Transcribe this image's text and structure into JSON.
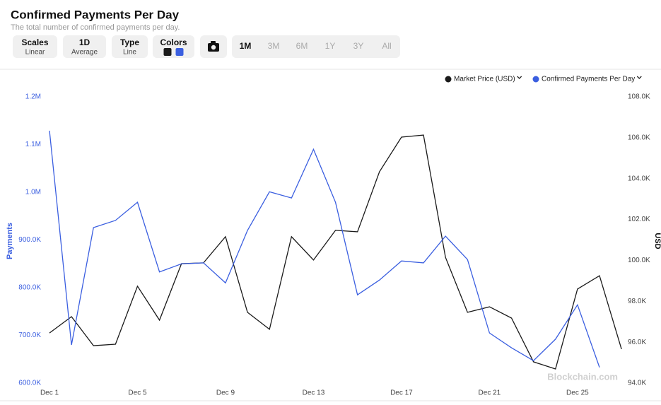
{
  "chart_data": {
    "type": "line",
    "title": "Confirmed Payments Per Day",
    "subtitle": "The total number of confirmed payments per day.",
    "controls": [
      {
        "label": "Scales",
        "value": "Linear"
      },
      {
        "label": "1D",
        "value": "Average"
      },
      {
        "label": "Type",
        "value": "Line"
      },
      {
        "label": "Colors"
      }
    ],
    "ranges": [
      "1M",
      "3M",
      "6M",
      "1Y",
      "3Y",
      "All"
    ],
    "active_range": "1M",
    "ylabel": "Payments",
    "y2label": "USD",
    "watermark": "Blockchain.com",
    "categories": [
      "Dec 1",
      null,
      null,
      null,
      "Dec 5",
      null,
      null,
      null,
      "Dec 9",
      null,
      null,
      null,
      "Dec 13",
      null,
      null,
      null,
      "Dec 17",
      null,
      null,
      null,
      "Dec 21",
      null,
      null,
      null,
      "Dec 25",
      null,
      null
    ],
    "series": [
      {
        "name": "Market Price (USD)",
        "color": "#1a1a1a",
        "axis": "y2",
        "values": [
          96450,
          97250,
          95830,
          95900,
          98740,
          97080,
          99840,
          99880,
          101160,
          97460,
          96630,
          101160,
          100020,
          101470,
          101400,
          104340,
          106030,
          106130,
          100150,
          97460,
          97730,
          97180,
          95040,
          94690,
          98600,
          99250,
          95660
        ]
      },
      {
        "name": "Confirmed Payments Per Day",
        "color": "#3b5fe0",
        "values": [
          1129000,
          680000,
          926000,
          941000,
          979000,
          833000,
          850000,
          852000,
          810000,
          920000,
          1001000,
          988000,
          1090000,
          979000,
          785000,
          816000,
          856000,
          852000,
          908000,
          859000,
          705000,
          674000,
          647000,
          692000,
          764000,
          633000,
          null
        ]
      }
    ],
    "ylim": [
      600000,
      1200000
    ],
    "yticks": [
      {
        "value": 600000,
        "label": "600.0K"
      },
      {
        "value": 700000,
        "label": "700.0K"
      },
      {
        "value": 800000,
        "label": "800.0K"
      },
      {
        "value": 900000,
        "label": "900.0K"
      },
      {
        "value": 1000000,
        "label": "1.0M"
      },
      {
        "value": 1100000,
        "label": "1.1M"
      },
      {
        "value": 1200000,
        "label": "1.2M"
      }
    ],
    "y2lim": [
      94000,
      108000
    ],
    "y2ticks": [
      {
        "value": 94000,
        "label": "94.0K"
      },
      {
        "value": 96000,
        "label": "96.0K"
      },
      {
        "value": 98000,
        "label": "98.0K"
      },
      {
        "value": 100000,
        "label": "100.0K"
      },
      {
        "value": 102000,
        "label": "102.0K"
      },
      {
        "value": 104000,
        "label": "104.0K"
      },
      {
        "value": 106000,
        "label": "106.0K"
      },
      {
        "value": 108000,
        "label": "108.0K"
      }
    ],
    "grid": false,
    "legend": "top-right"
  }
}
